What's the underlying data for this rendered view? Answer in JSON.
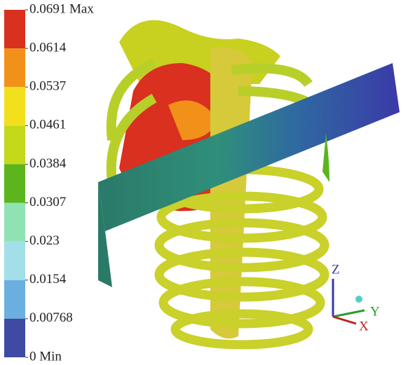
{
  "legend": {
    "labels": [
      "0.0691 Max",
      "0.0614",
      "0.0537",
      "0.0461",
      "0.0384",
      "0.0307",
      "0.023",
      "0.0154",
      "0.00768",
      "0 Min"
    ],
    "colors": [
      "#d9301f",
      "#f2911a",
      "#f2e01c",
      "#c4d81c",
      "#5db51e",
      "#8fe3b3",
      "#a3dfe8",
      "#6aafe0",
      "#3e4aa3"
    ]
  },
  "triad": {
    "z": "Z",
    "y": "Y",
    "x": "X"
  }
}
